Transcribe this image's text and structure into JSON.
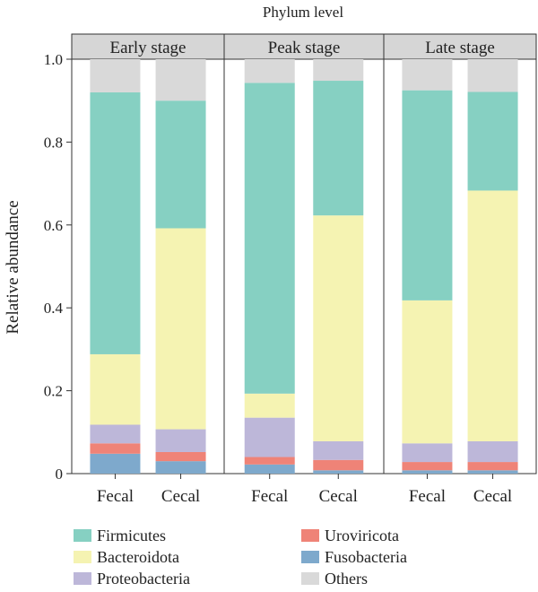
{
  "chart_data": {
    "type": "bar",
    "stacked": true,
    "title": "Phylum level",
    "ylabel": "Relative abundance",
    "ylim": [
      0,
      1.0
    ],
    "yticks": [
      "0",
      "0.2",
      "0.4",
      "0.6",
      "0.8",
      "1.0"
    ],
    "facets": [
      "Early stage",
      "Peak stage",
      "Late stage"
    ],
    "categories": [
      "Fecal",
      "Cecal"
    ],
    "grid": false,
    "legend_position": "bottom",
    "series": [
      {
        "name": "Fusobacteria",
        "color": "#7ea9cc",
        "values": [
          [
            0.048,
            0.03
          ],
          [
            0.022,
            0.008
          ],
          [
            0.008,
            0.008
          ]
        ]
      },
      {
        "name": "Uroviricota",
        "color": "#ef8377",
        "values": [
          [
            0.025,
            0.022
          ],
          [
            0.018,
            0.025
          ],
          [
            0.02,
            0.02
          ]
        ]
      },
      {
        "name": "Proteobacteria",
        "color": "#bdb7d9",
        "values": [
          [
            0.045,
            0.055
          ],
          [
            0.095,
            0.045
          ],
          [
            0.045,
            0.05
          ]
        ]
      },
      {
        "name": "Bacteroidota",
        "color": "#f5f3b2",
        "values": [
          [
            0.17,
            0.485
          ],
          [
            0.058,
            0.545
          ],
          [
            0.345,
            0.605
          ]
        ]
      },
      {
        "name": "Firmicutes",
        "color": "#86d0c2",
        "values": [
          [
            0.632,
            0.308
          ],
          [
            0.75,
            0.325
          ],
          [
            0.507,
            0.238
          ]
        ]
      },
      {
        "name": "Others",
        "color": "#d9d9d9",
        "values": [
          [
            0.08,
            0.1
          ],
          [
            0.057,
            0.052
          ],
          [
            0.075,
            0.079
          ]
        ]
      }
    ],
    "legend_order": [
      "Firmicutes",
      "Bacteroidota",
      "Proteobacteria",
      "Uroviricota",
      "Fusobacteria",
      "Others"
    ]
  }
}
